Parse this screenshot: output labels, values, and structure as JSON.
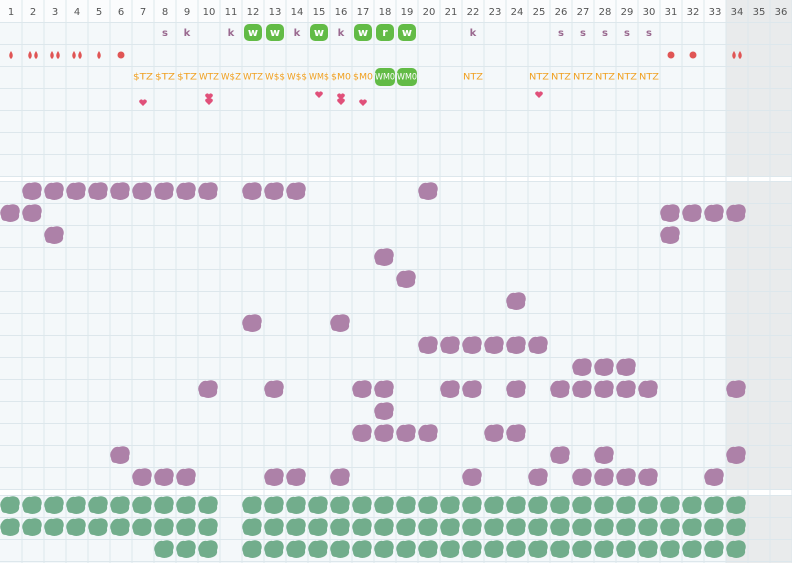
{
  "columns": [
    1,
    2,
    3,
    4,
    5,
    6,
    7,
    8,
    9,
    10,
    11,
    12,
    13,
    14,
    15,
    16,
    17,
    18,
    19,
    20,
    21,
    22,
    23,
    24,
    25,
    26,
    27,
    28,
    29,
    30,
    31,
    32,
    33,
    34,
    35,
    36
  ],
  "letter_row": [
    null,
    null,
    null,
    null,
    null,
    null,
    null,
    "s",
    "k",
    null,
    "k",
    "w",
    "w",
    "k",
    "w",
    "k",
    "w",
    "r",
    "w",
    null,
    null,
    "k",
    null,
    null,
    null,
    "s",
    "s",
    "s",
    "s",
    "s",
    null,
    null,
    null,
    null,
    null,
    null
  ],
  "code_row": [
    null,
    null,
    null,
    null,
    null,
    null,
    "$TZ",
    "$TZ",
    "$TZ",
    "WTZ",
    "W$Z",
    "WTZ",
    "W$$",
    "W$$",
    "WM$",
    "$M0",
    "$M0",
    "WM0",
    "WM0",
    null,
    null,
    "NTZ",
    null,
    null,
    "NTZ",
    "NTZ",
    "NTZ",
    "NTZ",
    "NTZ",
    "NTZ",
    null,
    null,
    null,
    null,
    null,
    null
  ]
}
